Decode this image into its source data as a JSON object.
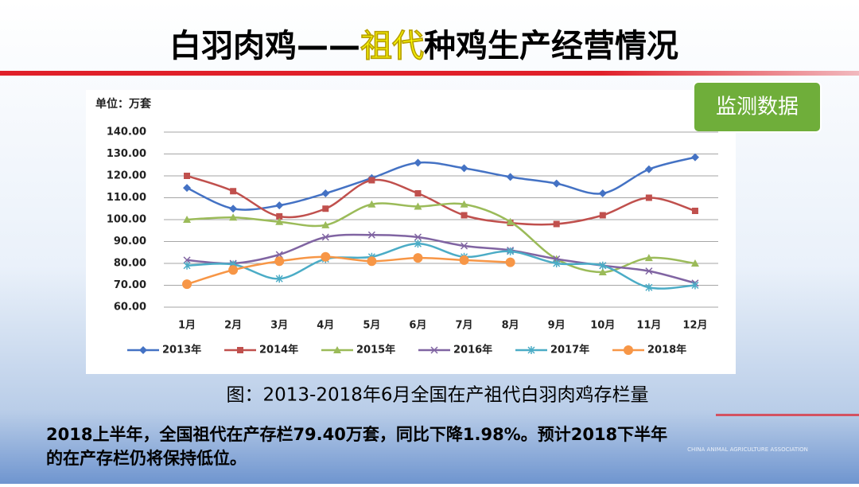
{
  "title_parts": [
    "白羽肉鸡——",
    "祖代",
    "种鸡生产经营情况"
  ],
  "badge": "监测数据",
  "caption": "图：2013-2018年6月全国在产祖代白羽肉鸡存栏量",
  "note_lines": [
    "2018上半年，全国祖代在产存栏79.40万套，同比下降1.98%。预计2018下半年",
    "的在产存栏仍将保持低位。"
  ],
  "watermark": "CHINA ANIMAL AGRICULTURE ASSOCIATION",
  "chart_data": {
    "type": "line",
    "unit_label": "单位：万套",
    "categories": [
      "1月",
      "2月",
      "3月",
      "4月",
      "5月",
      "6月",
      "7月",
      "8月",
      "9月",
      "10月",
      "11月",
      "12月"
    ],
    "series": [
      {
        "name": "2013年",
        "color": "#4472c4",
        "marker": "diamond",
        "values": [
          114.5,
          105,
          106.5,
          112,
          119,
          126,
          123.5,
          119.5,
          116.5,
          112,
          123,
          128.5
        ]
      },
      {
        "name": "2014年",
        "color": "#c0504d",
        "marker": "square",
        "values": [
          120,
          113,
          101.5,
          105,
          118,
          112,
          102,
          98.5,
          98,
          102,
          110,
          104
        ]
      },
      {
        "name": "2015年",
        "color": "#9bbb59",
        "marker": "triangle",
        "values": [
          100,
          101,
          99,
          97.5,
          107,
          106,
          107,
          99,
          82,
          76,
          82.5,
          80
        ]
      },
      {
        "name": "2016年",
        "color": "#8064a2",
        "marker": "x",
        "values": [
          81.5,
          80,
          84,
          92,
          93,
          92,
          88,
          86,
          82,
          79,
          76.5,
          71
        ]
      },
      {
        "name": "2017年",
        "color": "#4bacc6",
        "marker": "star",
        "values": [
          79,
          79.5,
          73,
          82,
          83,
          89,
          83,
          85.5,
          80,
          79,
          69,
          70
        ]
      },
      {
        "name": "2018年",
        "color": "#f79646",
        "marker": "circle",
        "values": [
          70.5,
          77,
          81,
          83,
          81,
          82.5,
          81.5,
          80.5,
          null,
          null,
          null,
          null
        ]
      }
    ],
    "ylim": [
      60,
      140
    ],
    "yticks": [
      {
        "value": 60,
        "label": "60.00"
      },
      {
        "value": 70,
        "label": "70.00"
      },
      {
        "value": 80,
        "label": "80.00"
      },
      {
        "value": 90,
        "label": "90.00"
      },
      {
        "value": 100,
        "label": "100.00"
      },
      {
        "value": 110,
        "label": "110.00"
      },
      {
        "value": 120,
        "label": "120.00"
      },
      {
        "value": 130,
        "label": "130.00"
      },
      {
        "value": 140,
        "label": "140.00"
      }
    ],
    "grid": true,
    "legend": "bottom"
  }
}
